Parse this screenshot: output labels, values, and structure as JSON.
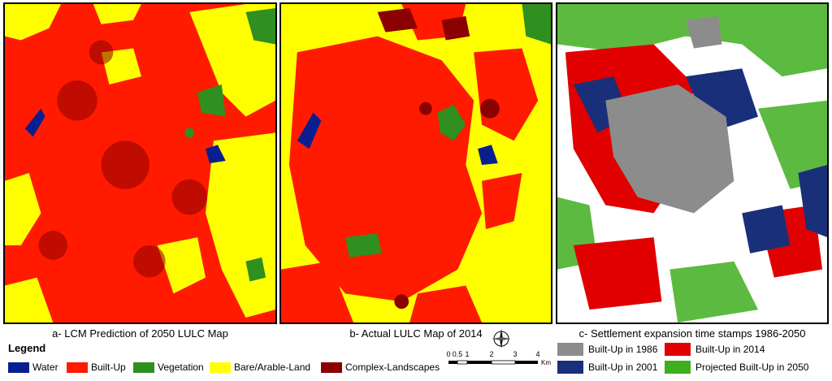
{
  "panels": {
    "a": {
      "caption": "a- LCM Prediction of 2050 LULC Map"
    },
    "b": {
      "caption": "b- Actual LULC Map of 2014"
    },
    "c": {
      "caption": "c- Settlement expansion time stamps 1986-2050"
    }
  },
  "legend": {
    "title": "Legend",
    "items": [
      {
        "label": "Water",
        "color": "#0a1f8f"
      },
      {
        "label": "Built-Up",
        "color": "#ff1a00"
      },
      {
        "label": "Vegetation",
        "color": "#2f8f1f"
      },
      {
        "label": "Bare/Arable-Land",
        "color": "#ffff00"
      },
      {
        "label": "Complex-Landscapes",
        "color": "#8b0000"
      }
    ]
  },
  "scale": {
    "ticks": [
      "0",
      "0.5",
      "1",
      "2",
      "3",
      "4"
    ],
    "unit": "Km"
  },
  "north_icon": "north-arrow-icon",
  "settlement_legend": [
    {
      "label": "Built-Up in 1986",
      "color": "#8c8c8c"
    },
    {
      "label": "Built-Up in 2014",
      "color": "#e00000"
    },
    {
      "label": "Built-Up in 2001",
      "color": "#1a2f7a"
    },
    {
      "label": "Projected Built-Up in 2050",
      "color": "#3fae1f"
    }
  ]
}
